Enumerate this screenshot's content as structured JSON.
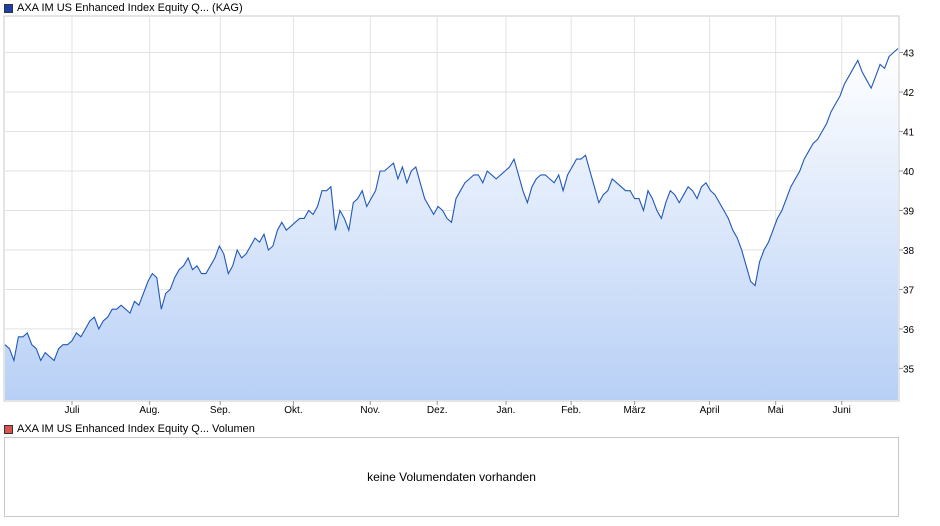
{
  "price_legend": {
    "color": "#1a3fa6",
    "label": "AXA IM US Enhanced Index Equity Q... (KAG)"
  },
  "volume_legend": {
    "color": "#d9534f",
    "label": "AXA IM US Enhanced Index Equity Q... Volumen"
  },
  "volume_panel": {
    "message": "keine Volumendaten vorhanden"
  },
  "chart_data": {
    "type": "area",
    "line_color": "#2158b8",
    "fill_top_color": "#ffffff",
    "fill_bottom_color": "#b8d0f6",
    "grid": true,
    "ylim": [
      34.2,
      43.9
    ],
    "y_ticks": [
      35,
      36,
      37,
      38,
      39,
      40,
      41,
      42,
      43
    ],
    "x_ticks": [
      {
        "label": "Juli",
        "t": 0.075
      },
      {
        "label": "Aug.",
        "t": 0.162
      },
      {
        "label": "Sep.",
        "t": 0.241
      },
      {
        "label": "Okt.",
        "t": 0.323
      },
      {
        "label": "Nov.",
        "t": 0.409
      },
      {
        "label": "Dez.",
        "t": 0.484
      },
      {
        "label": "Jan.",
        "t": 0.561
      },
      {
        "label": "Feb.",
        "t": 0.634
      },
      {
        "label": "März",
        "t": 0.705
      },
      {
        "label": "April",
        "t": 0.789
      },
      {
        "label": "Mai",
        "t": 0.863
      },
      {
        "label": "Juni",
        "t": 0.937
      }
    ],
    "series": [
      {
        "values": [
          [
            0.0,
            35.6
          ],
          [
            0.005,
            35.5
          ],
          [
            0.01,
            35.2
          ],
          [
            0.015,
            35.8
          ],
          [
            0.02,
            35.8
          ],
          [
            0.025,
            35.9
          ],
          [
            0.03,
            35.6
          ],
          [
            0.035,
            35.5
          ],
          [
            0.04,
            35.2
          ],
          [
            0.045,
            35.4
          ],
          [
            0.05,
            35.3
          ],
          [
            0.055,
            35.2
          ],
          [
            0.06,
            35.5
          ],
          [
            0.065,
            35.6
          ],
          [
            0.07,
            35.6
          ],
          [
            0.075,
            35.7
          ],
          [
            0.08,
            35.9
          ],
          [
            0.085,
            35.8
          ],
          [
            0.09,
            36.0
          ],
          [
            0.095,
            36.2
          ],
          [
            0.1,
            36.3
          ],
          [
            0.105,
            36.0
          ],
          [
            0.11,
            36.2
          ],
          [
            0.115,
            36.3
          ],
          [
            0.12,
            36.5
          ],
          [
            0.125,
            36.5
          ],
          [
            0.13,
            36.6
          ],
          [
            0.135,
            36.5
          ],
          [
            0.14,
            36.4
          ],
          [
            0.145,
            36.7
          ],
          [
            0.15,
            36.6
          ],
          [
            0.155,
            36.9
          ],
          [
            0.16,
            37.2
          ],
          [
            0.165,
            37.4
          ],
          [
            0.17,
            37.3
          ],
          [
            0.175,
            36.5
          ],
          [
            0.18,
            36.9
          ],
          [
            0.185,
            37.0
          ],
          [
            0.19,
            37.3
          ],
          [
            0.195,
            37.5
          ],
          [
            0.2,
            37.6
          ],
          [
            0.205,
            37.8
          ],
          [
            0.21,
            37.5
          ],
          [
            0.215,
            37.6
          ],
          [
            0.22,
            37.4
          ],
          [
            0.225,
            37.4
          ],
          [
            0.23,
            37.6
          ],
          [
            0.235,
            37.8
          ],
          [
            0.24,
            38.1
          ],
          [
            0.245,
            37.9
          ],
          [
            0.25,
            37.4
          ],
          [
            0.255,
            37.6
          ],
          [
            0.26,
            38.0
          ],
          [
            0.265,
            37.8
          ],
          [
            0.27,
            37.9
          ],
          [
            0.275,
            38.1
          ],
          [
            0.28,
            38.3
          ],
          [
            0.285,
            38.2
          ],
          [
            0.29,
            38.4
          ],
          [
            0.295,
            38.0
          ],
          [
            0.3,
            38.1
          ],
          [
            0.305,
            38.5
          ],
          [
            0.31,
            38.7
          ],
          [
            0.315,
            38.5
          ],
          [
            0.32,
            38.6
          ],
          [
            0.325,
            38.7
          ],
          [
            0.33,
            38.8
          ],
          [
            0.335,
            38.8
          ],
          [
            0.34,
            39.0
          ],
          [
            0.345,
            38.9
          ],
          [
            0.35,
            39.1
          ],
          [
            0.355,
            39.5
          ],
          [
            0.36,
            39.5
          ],
          [
            0.365,
            39.6
          ],
          [
            0.37,
            38.5
          ],
          [
            0.375,
            39.0
          ],
          [
            0.38,
            38.8
          ],
          [
            0.385,
            38.5
          ],
          [
            0.39,
            39.2
          ],
          [
            0.395,
            39.3
          ],
          [
            0.4,
            39.5
          ],
          [
            0.405,
            39.1
          ],
          [
            0.41,
            39.3
          ],
          [
            0.415,
            39.5
          ],
          [
            0.42,
            40.0
          ],
          [
            0.425,
            40.0
          ],
          [
            0.43,
            40.1
          ],
          [
            0.435,
            40.2
          ],
          [
            0.44,
            39.8
          ],
          [
            0.445,
            40.1
          ],
          [
            0.45,
            39.7
          ],
          [
            0.455,
            40.0
          ],
          [
            0.46,
            40.1
          ],
          [
            0.465,
            39.7
          ],
          [
            0.47,
            39.3
          ],
          [
            0.475,
            39.1
          ],
          [
            0.48,
            38.9
          ],
          [
            0.485,
            39.1
          ],
          [
            0.49,
            39.0
          ],
          [
            0.495,
            38.8
          ],
          [
            0.5,
            38.7
          ],
          [
            0.505,
            39.3
          ],
          [
            0.51,
            39.5
          ],
          [
            0.515,
            39.7
          ],
          [
            0.52,
            39.8
          ],
          [
            0.525,
            39.9
          ],
          [
            0.53,
            39.9
          ],
          [
            0.535,
            39.7
          ],
          [
            0.54,
            40.0
          ],
          [
            0.545,
            39.9
          ],
          [
            0.55,
            39.8
          ],
          [
            0.555,
            39.9
          ],
          [
            0.56,
            40.0
          ],
          [
            0.565,
            40.1
          ],
          [
            0.57,
            40.3
          ],
          [
            0.575,
            39.9
          ],
          [
            0.58,
            39.5
          ],
          [
            0.585,
            39.2
          ],
          [
            0.59,
            39.6
          ],
          [
            0.595,
            39.8
          ],
          [
            0.6,
            39.9
          ],
          [
            0.605,
            39.9
          ],
          [
            0.61,
            39.8
          ],
          [
            0.615,
            39.7
          ],
          [
            0.62,
            39.9
          ],
          [
            0.625,
            39.5
          ],
          [
            0.63,
            39.9
          ],
          [
            0.635,
            40.1
          ],
          [
            0.64,
            40.3
          ],
          [
            0.645,
            40.3
          ],
          [
            0.65,
            40.4
          ],
          [
            0.655,
            40.0
          ],
          [
            0.66,
            39.6
          ],
          [
            0.665,
            39.2
          ],
          [
            0.67,
            39.4
          ],
          [
            0.675,
            39.5
          ],
          [
            0.68,
            39.8
          ],
          [
            0.685,
            39.7
          ],
          [
            0.69,
            39.6
          ],
          [
            0.695,
            39.5
          ],
          [
            0.7,
            39.5
          ],
          [
            0.705,
            39.3
          ],
          [
            0.71,
            39.3
          ],
          [
            0.715,
            39.0
          ],
          [
            0.72,
            39.5
          ],
          [
            0.725,
            39.3
          ],
          [
            0.73,
            39.0
          ],
          [
            0.735,
            38.8
          ],
          [
            0.74,
            39.2
          ],
          [
            0.745,
            39.5
          ],
          [
            0.75,
            39.4
          ],
          [
            0.755,
            39.2
          ],
          [
            0.76,
            39.4
          ],
          [
            0.765,
            39.6
          ],
          [
            0.77,
            39.5
          ],
          [
            0.775,
            39.3
          ],
          [
            0.78,
            39.6
          ],
          [
            0.785,
            39.7
          ],
          [
            0.79,
            39.5
          ],
          [
            0.795,
            39.4
          ],
          [
            0.8,
            39.2
          ],
          [
            0.805,
            39.0
          ],
          [
            0.81,
            38.8
          ],
          [
            0.815,
            38.5
          ],
          [
            0.82,
            38.3
          ],
          [
            0.825,
            38.0
          ],
          [
            0.83,
            37.6
          ],
          [
            0.835,
            37.2
          ],
          [
            0.84,
            37.1
          ],
          [
            0.845,
            37.7
          ],
          [
            0.85,
            38.0
          ],
          [
            0.855,
            38.2
          ],
          [
            0.86,
            38.5
          ],
          [
            0.865,
            38.8
          ],
          [
            0.87,
            39.0
          ],
          [
            0.875,
            39.3
          ],
          [
            0.88,
            39.6
          ],
          [
            0.885,
            39.8
          ],
          [
            0.89,
            40.0
          ],
          [
            0.895,
            40.3
          ],
          [
            0.9,
            40.5
          ],
          [
            0.905,
            40.7
          ],
          [
            0.91,
            40.8
          ],
          [
            0.915,
            41.0
          ],
          [
            0.92,
            41.2
          ],
          [
            0.925,
            41.5
          ],
          [
            0.93,
            41.7
          ],
          [
            0.935,
            41.9
          ],
          [
            0.94,
            42.2
          ],
          [
            0.945,
            42.4
          ],
          [
            0.95,
            42.6
          ],
          [
            0.955,
            42.8
          ],
          [
            0.96,
            42.5
          ],
          [
            0.965,
            42.3
          ],
          [
            0.97,
            42.1
          ],
          [
            0.975,
            42.4
          ],
          [
            0.98,
            42.7
          ],
          [
            0.985,
            42.6
          ],
          [
            0.99,
            42.9
          ],
          [
            0.995,
            43.0
          ],
          [
            1.0,
            43.1
          ]
        ]
      }
    ]
  }
}
